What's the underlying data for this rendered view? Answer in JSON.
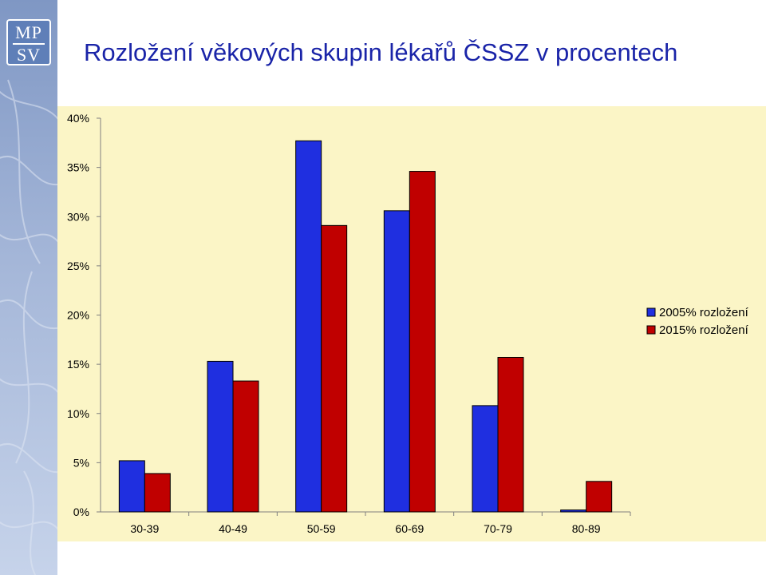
{
  "slide": {
    "title": "Rozložení věkových skupin lékařů ČSSZ v procentech",
    "logo_line1": "MP",
    "logo_line2": "SV"
  },
  "colors": {
    "series_2005": "#1f2fe0",
    "series_2015": "#c00000",
    "plot_background": "#fbf5c6",
    "title": "#1a24a8"
  },
  "chart_data": {
    "type": "bar",
    "title": "",
    "xlabel": "",
    "ylabel": "",
    "categories": [
      "30-39",
      "40-49",
      "50-59",
      "60-69",
      "70-79",
      "80-89"
    ],
    "series": [
      {
        "name": "2005% rozložení",
        "values": [
          5.2,
          15.3,
          37.7,
          30.6,
          10.8,
          0.2
        ]
      },
      {
        "name": "2015% rozložení",
        "values": [
          3.9,
          13.3,
          29.1,
          34.6,
          15.7,
          3.1
        ]
      }
    ],
    "ylim": [
      0,
      40
    ],
    "yticks": [
      "0%",
      "5%",
      "10%",
      "15%",
      "20%",
      "25%",
      "30%",
      "35%",
      "40%"
    ],
    "grid": false,
    "legend_position": "right"
  }
}
